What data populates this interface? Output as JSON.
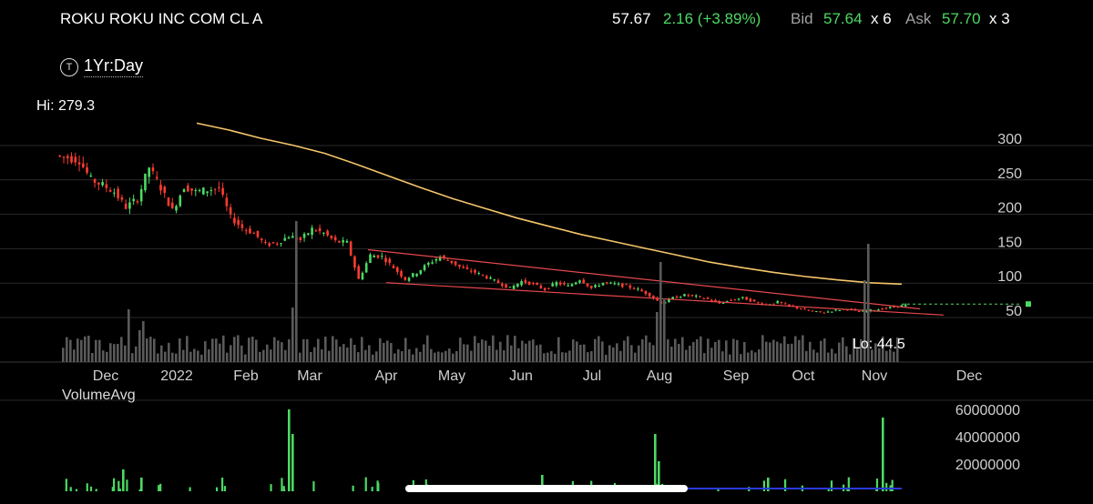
{
  "header": {
    "symbol_name": "ROKU ROKU INC COM CL A",
    "last": "57.67",
    "change": "2.16 (+3.89%)",
    "bid_label": "Bid",
    "bid": "57.64",
    "bid_size": "x 6",
    "ask_label": "Ask",
    "ask": "57.70",
    "ask_size": "x 3"
  },
  "range": {
    "icon": "T",
    "label": "1Yr:Day"
  },
  "stats": {
    "hi": "Hi: 279.3",
    "lo": "Lo: 44.5"
  },
  "volume_panel": {
    "title": "VolumeAvg"
  },
  "colors": {
    "up": "#4cd964",
    "down": "#ff3b30",
    "ma": "#f5c66a",
    "trend": "#e5484d",
    "vol": "#5a5a5a",
    "vol_green": "#4cd964",
    "vol_avg": "#2a3bd6"
  },
  "chart_data": [
    {
      "type": "line",
      "title": "ROKU 1Yr:Day",
      "x_tick_labels": [
        "Dec",
        "2022",
        "Feb",
        "Mar",
        "Apr",
        "May",
        "Jun",
        "Jul",
        "Aug",
        "Sep",
        "Oct",
        "Nov",
        "Dec"
      ],
      "y_tick_labels": [
        "300",
        "250",
        "200",
        "150",
        "100",
        "50"
      ],
      "ylim": [
        0,
        310
      ],
      "grid": true,
      "series": [
        {
          "values": [
            272,
            268,
            240,
            232,
            222,
            200,
            212,
            258,
            228,
            195,
            230,
            222,
            225,
            228,
            185,
            170,
            162,
            145,
            148,
            158,
            152,
            168,
            162,
            150,
            148,
            95,
            130,
            128,
            112,
            95,
            105,
            118,
            128,
            120,
            110,
            105,
            98,
            90,
            82,
            92,
            88,
            80,
            90,
            85,
            95,
            82,
            90,
            88,
            85,
            80,
            72,
            60,
            68,
            72,
            70,
            66,
            60,
            65,
            68,
            62,
            58,
            62,
            56,
            52,
            48,
            47,
            50,
            52,
            48,
            50,
            52,
            55,
            57.67
          ]
        },
        {
          "name": "moving average",
          "values": [
            322,
            312,
            300,
            290,
            278,
            262,
            245,
            228,
            212,
            198,
            184,
            172,
            160,
            150,
            140,
            130,
            120,
            112,
            105,
            99,
            94,
            90,
            88
          ]
        }
      ],
      "annotations": [
        "Hi: 279.3",
        "Lo: 44.5"
      ]
    },
    {
      "type": "bar",
      "title": "VolumeAvg",
      "y_tick_labels": [
        "60000000",
        "40000000",
        "20000000"
      ],
      "ylim": [
        0,
        65000000
      ],
      "spikes": [
        {
          "x_month": "Dec",
          "value": 16000000
        },
        {
          "x_month": "Dec",
          "value": 10000000
        },
        {
          "x_month": "Mar",
          "value": 60000000
        },
        {
          "x_month": "Mar",
          "value": 42000000
        },
        {
          "x_month": "Jun",
          "value": 12000000
        },
        {
          "x_month": "Aug",
          "value": 42000000
        },
        {
          "x_month": "Aug",
          "value": 22000000
        },
        {
          "x_month": "Oct",
          "value": 10000000
        },
        {
          "x_month": "Nov",
          "value": 54000000
        }
      ]
    }
  ]
}
